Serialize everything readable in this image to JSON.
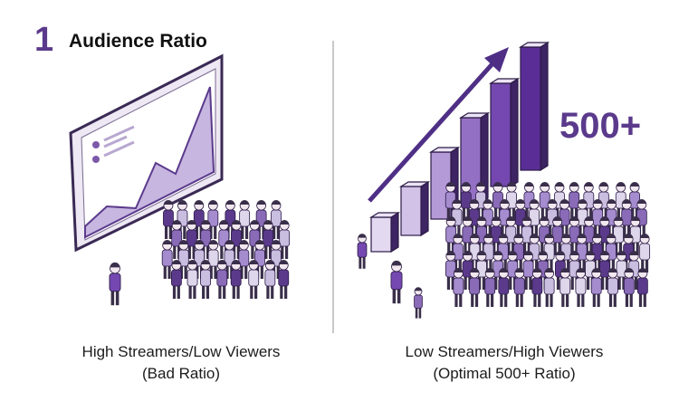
{
  "header": {
    "number": "1",
    "title": "Audience Ratio"
  },
  "panels": [
    {
      "caption_line1": "High Streamers/Low Viewers",
      "caption_line2": "(Bad Ratio)"
    },
    {
      "badge": "500+",
      "caption_line1": "Low Streamers/High Viewers",
      "caption_line2": "(Optimal 500+ Ratio)"
    }
  ]
}
